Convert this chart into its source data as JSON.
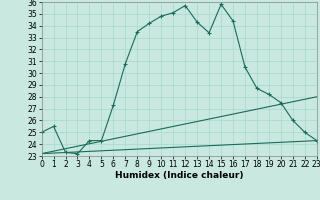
{
  "xlabel": "Humidex (Indice chaleur)",
  "ylabel": "",
  "xlim": [
    0,
    23
  ],
  "ylim": [
    23,
    36
  ],
  "xticks": [
    0,
    1,
    2,
    3,
    4,
    5,
    6,
    7,
    8,
    9,
    10,
    11,
    12,
    13,
    14,
    15,
    16,
    17,
    18,
    19,
    20,
    21,
    22,
    23
  ],
  "yticks": [
    23,
    24,
    25,
    26,
    27,
    28,
    29,
    30,
    31,
    32,
    33,
    34,
    35,
    36
  ],
  "bg_color": "#c8e8e0",
  "line_color": "#1a6b5a",
  "series": [
    {
      "x": [
        0,
        1,
        2,
        3,
        4,
        5,
        6,
        7,
        8,
        9,
        10,
        11,
        12,
        13,
        14,
        15,
        16,
        17,
        18,
        19,
        20,
        21,
        22,
        23
      ],
      "y": [
        25.0,
        25.5,
        23.3,
        23.2,
        24.3,
        24.3,
        27.3,
        30.8,
        33.5,
        34.2,
        34.8,
        35.1,
        35.7,
        34.3,
        33.4,
        35.8,
        34.4,
        30.5,
        28.7,
        28.2,
        27.5,
        26.0,
        25.0,
        24.3
      ]
    },
    {
      "x": [
        0,
        23
      ],
      "y": [
        23.2,
        24.3
      ]
    },
    {
      "x": [
        0,
        23
      ],
      "y": [
        23.2,
        28.0
      ]
    }
  ],
  "grid_color": "#a8d8d0",
  "tick_fontsize": 5.5,
  "xlabel_fontsize": 6.5
}
